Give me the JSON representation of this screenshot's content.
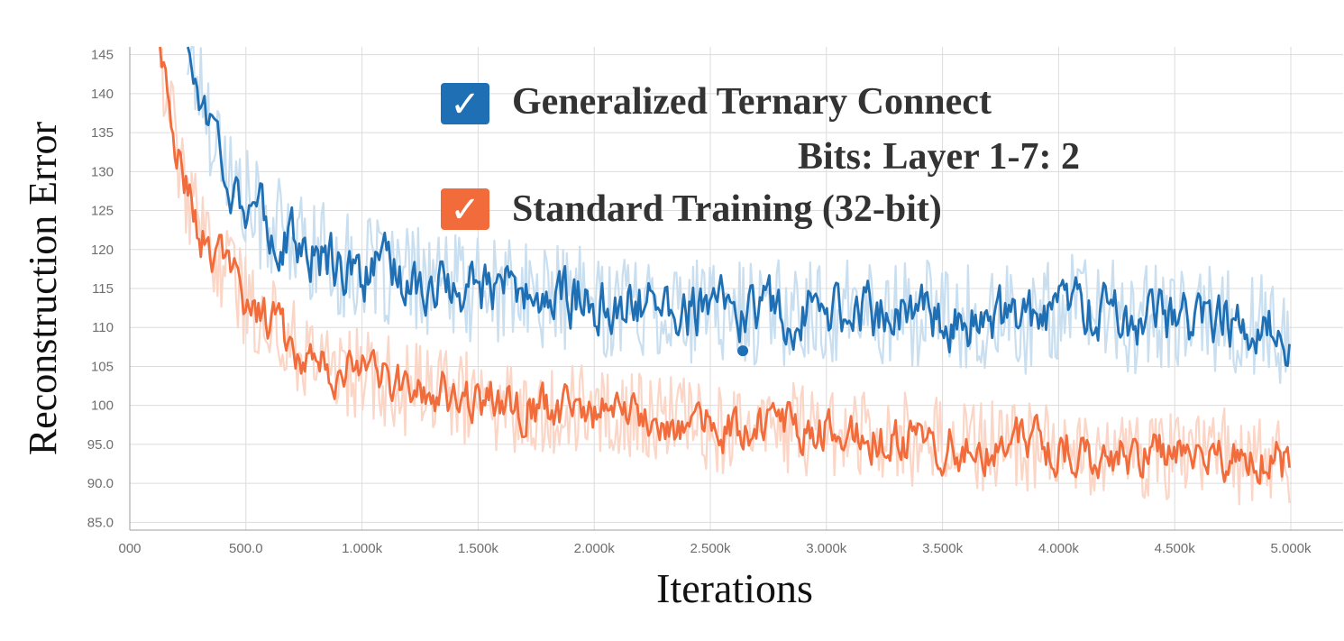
{
  "chart_data": {
    "type": "line",
    "xlabel": "Iterations",
    "ylabel": "Reconstruction Error",
    "xlim": [
      0,
      5000
    ],
    "ylim": [
      84,
      146
    ],
    "x_ticks": [
      {
        "value": 0,
        "label": "000"
      },
      {
        "value": 500,
        "label": "500.0"
      },
      {
        "value": 1000,
        "label": "1.000k"
      },
      {
        "value": 1500,
        "label": "1.500k"
      },
      {
        "value": 2000,
        "label": "2.000k"
      },
      {
        "value": 2500,
        "label": "2.500k"
      },
      {
        "value": 3000,
        "label": "3.000k"
      },
      {
        "value": 3500,
        "label": "3.500k"
      },
      {
        "value": 4000,
        "label": "4.000k"
      },
      {
        "value": 4500,
        "label": "4.500k"
      },
      {
        "value": 5000,
        "label": "5.000k"
      }
    ],
    "y_ticks": [
      {
        "value": 85,
        "label": "85.0"
      },
      {
        "value": 90,
        "label": "90.0"
      },
      {
        "value": 95,
        "label": "95.0"
      },
      {
        "value": 100,
        "label": "100"
      },
      {
        "value": 105,
        "label": "105"
      },
      {
        "value": 110,
        "label": "110"
      },
      {
        "value": 115,
        "label": "115"
      },
      {
        "value": 120,
        "label": "120"
      },
      {
        "value": 125,
        "label": "125"
      },
      {
        "value": 130,
        "label": "130"
      },
      {
        "value": 135,
        "label": "135"
      },
      {
        "value": 140,
        "label": "140"
      },
      {
        "value": 145,
        "label": "145"
      }
    ],
    "grid": true,
    "legend_position": "top-center",
    "series": [
      {
        "name": "Generalized Ternary Connect",
        "name_line2": "Bits: Layer 1-7: 2",
        "color": "#1f6fb4",
        "raw_color": "#c9dff0",
        "x": [
          250,
          300,
          350,
          400,
          450,
          500,
          600,
          700,
          800,
          900,
          1000,
          1100,
          1200,
          1300,
          1400,
          1500,
          1600,
          1700,
          1800,
          1900,
          2000,
          2100,
          2200,
          2300,
          2400,
          2500,
          2600,
          2700,
          2800,
          2900,
          3000,
          3100,
          3200,
          3300,
          3400,
          3500,
          3600,
          3700,
          3800,
          3900,
          4000,
          4100,
          4200,
          4300,
          4400,
          4500,
          4600,
          4700,
          4800,
          4900,
          5000
        ],
        "values": [
          146,
          141,
          136,
          133,
          128,
          126,
          123,
          121,
          120,
          118,
          117,
          117,
          116,
          116,
          115,
          115,
          115,
          114,
          114,
          114,
          113,
          113,
          113,
          113,
          112,
          112,
          112,
          112,
          112,
          112,
          112,
          112,
          112,
          112,
          112,
          111,
          111,
          111,
          111,
          111,
          113,
          112,
          112,
          111,
          111,
          111,
          111,
          111,
          110,
          110,
          109
        ]
      },
      {
        "name": "Standard Training (32-bit)",
        "color": "#f26b3a",
        "raw_color": "#fbd6c7",
        "x": [
          130,
          150,
          200,
          250,
          300,
          350,
          400,
          450,
          500,
          600,
          700,
          800,
          900,
          1000,
          1100,
          1200,
          1300,
          1400,
          1500,
          1600,
          1700,
          1800,
          1900,
          2000,
          2100,
          2200,
          2300,
          2400,
          2500,
          2600,
          2700,
          2800,
          2900,
          3000,
          3100,
          3200,
          3300,
          3400,
          3500,
          3600,
          3700,
          3800,
          3900,
          4000,
          4100,
          4200,
          4300,
          4400,
          4500,
          4600,
          4700,
          4800,
          4900,
          5000
        ],
        "values": [
          146,
          142,
          133,
          127,
          122,
          120,
          118,
          117,
          113,
          111,
          108,
          106,
          105,
          104,
          103,
          102,
          102,
          101,
          101,
          100,
          100,
          100,
          99.5,
          99.5,
          99,
          98.5,
          98,
          98,
          97.5,
          97,
          97,
          97,
          97,
          97,
          96.5,
          96,
          96,
          95.5,
          95,
          95,
          95,
          95,
          95,
          95,
          94.5,
          94,
          94,
          94,
          93.5,
          94,
          94,
          93,
          92.5,
          92.5
        ]
      }
    ],
    "marker": {
      "x": 2640,
      "y": 107,
      "color": "#1f6fb4"
    }
  },
  "legend": {
    "check_glyph": "✓"
  }
}
